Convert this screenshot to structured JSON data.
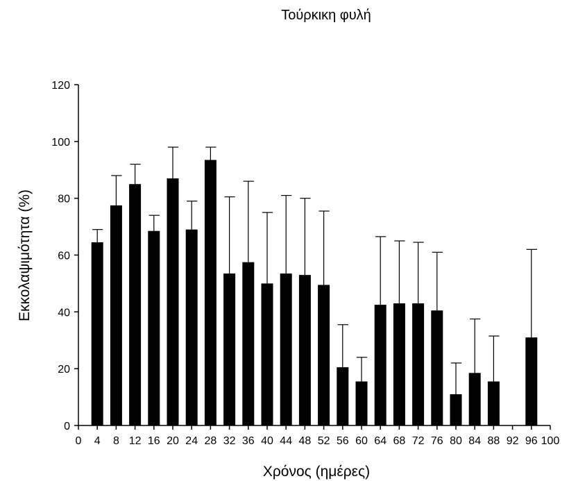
{
  "chart_data": {
    "type": "bar",
    "title": "Τούρκικη φυλή",
    "xlabel": "Χρόνος (ημέρες)",
    "ylabel": "Εκκολαψιμότητα (%)",
    "xlim": [
      0,
      100
    ],
    "ylim": [
      0,
      120
    ],
    "x_ticks": [
      0,
      4,
      8,
      12,
      16,
      20,
      24,
      28,
      32,
      36,
      40,
      44,
      48,
      52,
      56,
      60,
      64,
      68,
      72,
      76,
      80,
      84,
      88,
      92,
      96,
      100
    ],
    "y_ticks": [
      0,
      20,
      40,
      60,
      80,
      100,
      120
    ],
    "grid": false,
    "legend": "none",
    "bar_color": "#000000",
    "series": [
      {
        "x": [
          4,
          8,
          12,
          16,
          20,
          24,
          28,
          32,
          36,
          40,
          44,
          48,
          52,
          56,
          60,
          64,
          68,
          72,
          76,
          80,
          84,
          88,
          96
        ],
        "values": [
          64.5,
          77.5,
          85,
          68.5,
          87,
          69,
          93.5,
          53.5,
          57.5,
          50,
          53.5,
          53,
          49.5,
          20.5,
          15.5,
          42.5,
          43,
          43,
          40.5,
          11,
          18.5,
          15.5,
          31
        ],
        "error_upper": [
          69,
          88,
          92,
          74,
          98,
          79,
          98,
          80.5,
          86,
          75,
          81,
          80,
          75.5,
          35.5,
          24,
          66.5,
          65,
          64.5,
          61,
          22,
          37.5,
          31.5,
          62
        ]
      }
    ]
  }
}
